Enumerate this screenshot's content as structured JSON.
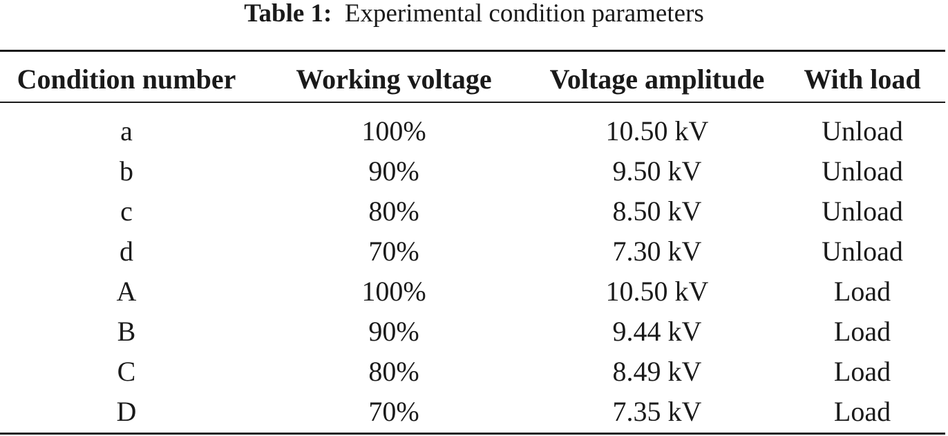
{
  "caption": {
    "label": "Table 1:",
    "text": "Experimental condition parameters"
  },
  "table": {
    "headers": [
      "Condition number",
      "Working voltage",
      "Voltage amplitude",
      "With load"
    ],
    "rows": [
      [
        "a",
        "100%",
        "10.50 kV",
        "Unload"
      ],
      [
        "b",
        "90%",
        "9.50 kV",
        "Unload"
      ],
      [
        "c",
        "80%",
        "8.50 kV",
        "Unload"
      ],
      [
        "d",
        "70%",
        "7.30 kV",
        "Unload"
      ],
      [
        "A",
        "100%",
        "10.50 kV",
        "Load"
      ],
      [
        "B",
        "90%",
        "9.44 kV",
        "Load"
      ],
      [
        "C",
        "80%",
        "8.49 kV",
        "Load"
      ],
      [
        "D",
        "70%",
        "7.35 kV",
        "Load"
      ]
    ]
  }
}
